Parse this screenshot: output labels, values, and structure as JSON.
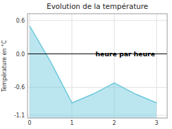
{
  "chart_data": {
    "type": "area",
    "title": "Evolution de la température",
    "y_label": "Température en °C",
    "annotations": [
      "heure par heure"
    ],
    "x": [
      0,
      0.5,
      1.0,
      1.5,
      2.0,
      2.5,
      3.0
    ],
    "values": [
      0.5,
      -0.15,
      -0.88,
      -0.72,
      -0.52,
      -0.72,
      -0.88
    ],
    "xlim": [
      -0.05,
      3.25
    ],
    "ylim": [
      -1.15,
      0.72
    ],
    "xticks": [
      0,
      1,
      2,
      3
    ],
    "yticks": [
      -1.1,
      -0.6,
      {
        "value": 0,
        "label": "0.0"
      },
      0.6
    ],
    "color": "#6bc8dc",
    "grid": true
  }
}
